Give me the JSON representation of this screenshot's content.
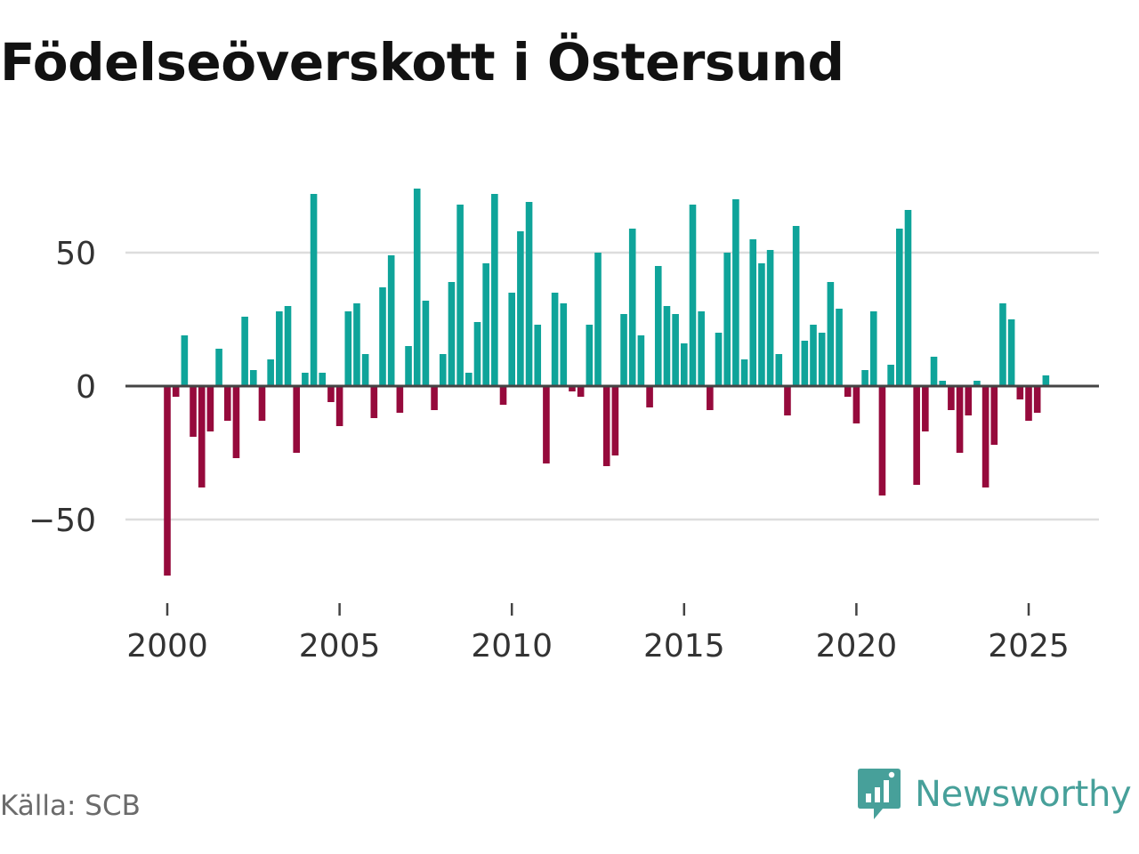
{
  "title": "Födelseöverskott i Östersund",
  "source": "Källa: SCB",
  "brand": {
    "name": "Newsworthy",
    "icon": "newsworthy-logo-icon",
    "color": "#47a09a"
  },
  "colors": {
    "positive": "#0fa49a",
    "negative": "#960a3c",
    "grid": "#dddddd",
    "zero_line": "#444444"
  },
  "chart_data": {
    "type": "bar",
    "title": "Födelseöverskott i Östersund",
    "xlabel": "",
    "ylabel": "",
    "x_start_year": 2000,
    "x_period": "quarter",
    "x_ticks": [
      2000,
      2005,
      2010,
      2015,
      2020,
      2025
    ],
    "x_tick_labels": [
      "2000",
      "2005",
      "2010",
      "2015",
      "2020",
      "2025"
    ],
    "y_ticks": [
      -50,
      0,
      50
    ],
    "y_tick_labels": [
      "−50",
      "0",
      "50"
    ],
    "xlim": [
      1999.5,
      2027.0
    ],
    "ylim": [
      -80,
      85
    ],
    "values": [
      -71,
      -4,
      19,
      -19,
      -38,
      -17,
      14,
      -13,
      -27,
      26,
      6,
      -13,
      10,
      28,
      30,
      -25,
      5,
      72,
      5,
      -6,
      -15,
      28,
      31,
      12,
      -12,
      37,
      49,
      -10,
      15,
      74,
      32,
      -9,
      12,
      39,
      68,
      5,
      24,
      46,
      72,
      -7,
      35,
      58,
      69,
      23,
      -29,
      35,
      31,
      -2,
      -4,
      23,
      50,
      -30,
      -26,
      27,
      59,
      19,
      -8,
      45,
      30,
      27,
      16,
      68,
      28,
      -9,
      20,
      50,
      70,
      10,
      55,
      46,
      51,
      12,
      -11,
      60,
      17,
      23,
      20,
      39,
      29,
      -4,
      -14,
      6,
      28,
      -41,
      8,
      59,
      66,
      -37,
      -17,
      11,
      2,
      -9,
      -25,
      -11,
      2,
      -38,
      -22,
      31,
      25,
      -5,
      -13,
      -10,
      4
    ]
  }
}
